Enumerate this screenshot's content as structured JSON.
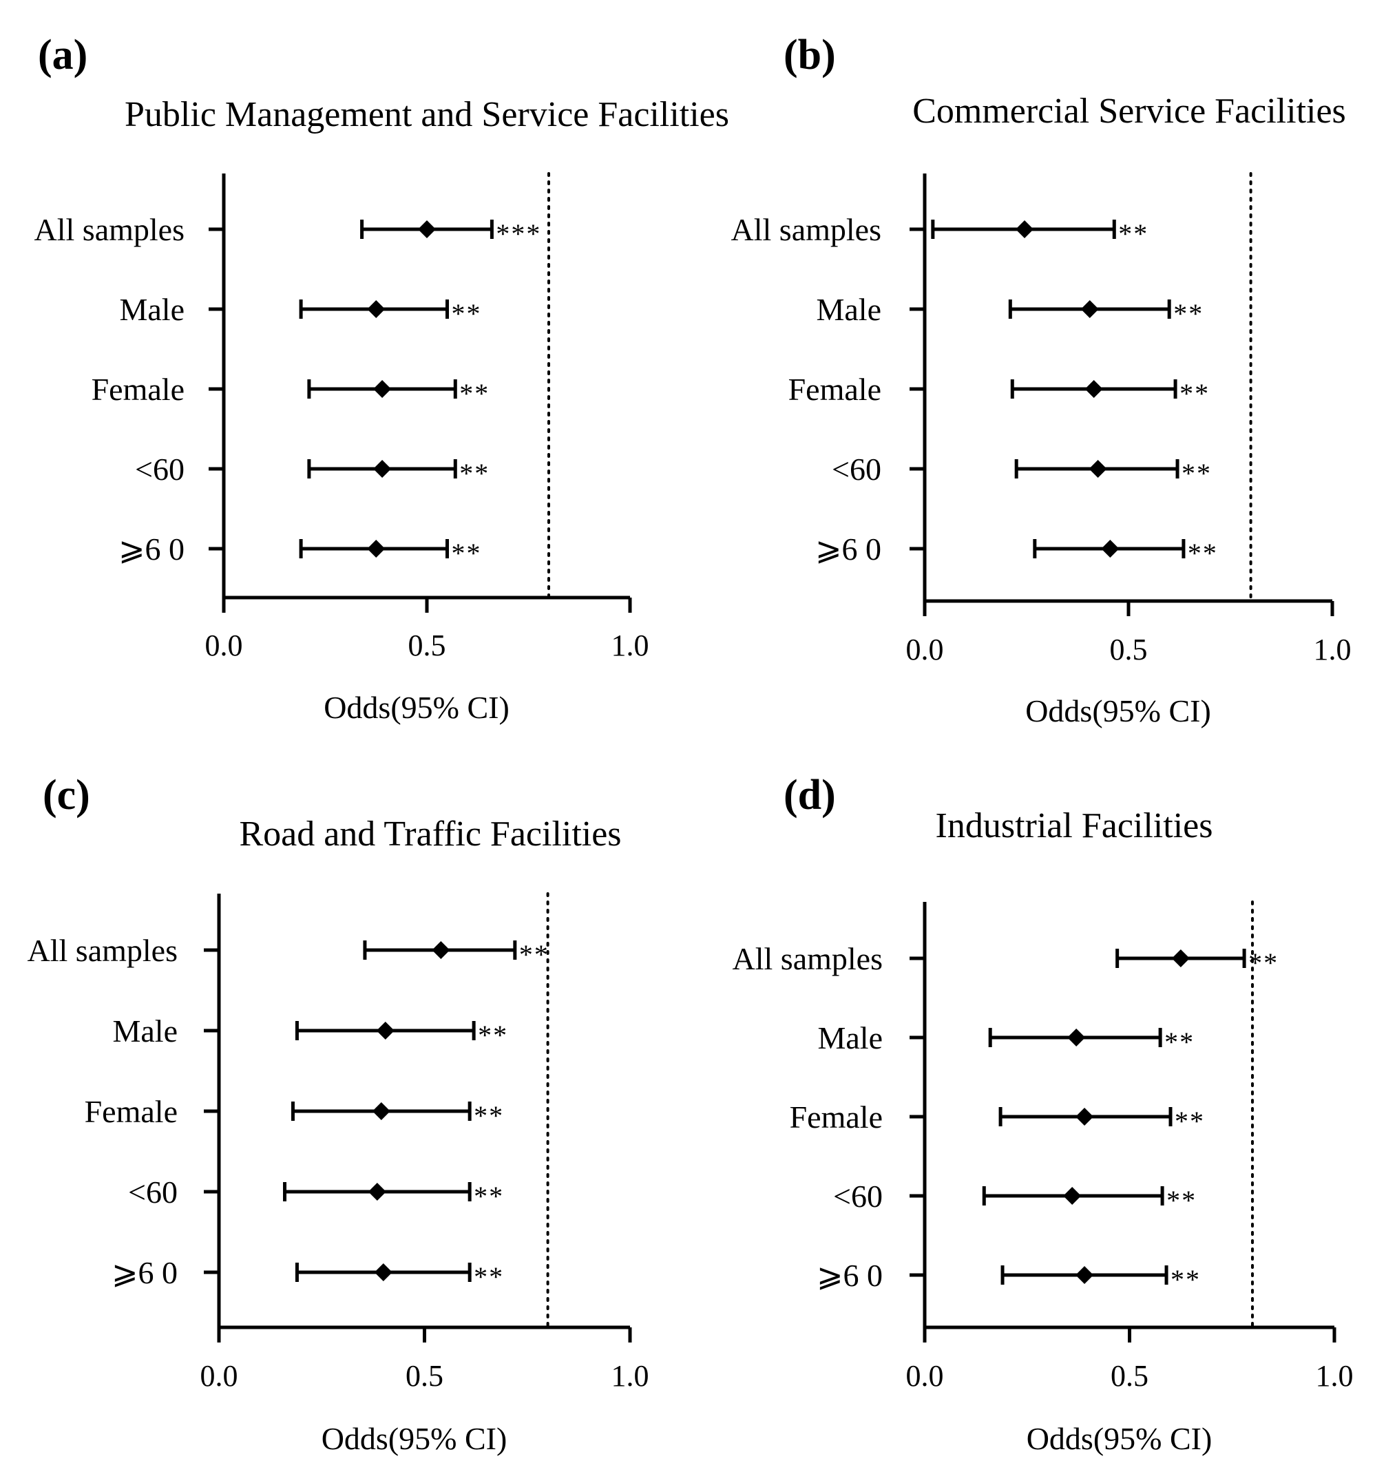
{
  "figure": {
    "chart_data": [
      {
        "type": "forest",
        "panel": "(a)",
        "title": "Public Management and Service Facilities",
        "xlabel": "Odds(95% CI)",
        "xlim": [
          0.0,
          1.0
        ],
        "xticks": [
          0.0,
          0.5,
          1.0
        ],
        "xtick_labels": [
          "0.0",
          "0.5",
          "1.0"
        ],
        "reference_line": 0.8,
        "categories": [
          "All samples",
          "Male",
          "Female",
          "<60",
          "⩾6 0"
        ],
        "estimates": [
          0.5,
          0.375,
          0.39,
          0.39,
          0.375
        ],
        "ci_lower": [
          0.34,
          0.19,
          0.21,
          0.21,
          0.19
        ],
        "ci_upper": [
          0.66,
          0.55,
          0.57,
          0.57,
          0.55
        ],
        "significance": [
          "***",
          "**",
          "**",
          "**",
          "**"
        ]
      },
      {
        "type": "forest",
        "panel": "(b)",
        "title": "Commercial Service Facilities",
        "xlabel": "Odds(95% CI)",
        "xlim": [
          0.0,
          1.0
        ],
        "xticks": [
          0.0,
          0.5,
          1.0
        ],
        "xtick_labels": [
          "0.0",
          "0.5",
          "1.0"
        ],
        "reference_line": 0.8,
        "categories": [
          "All samples",
          "Male",
          "Female",
          "<60",
          "⩾6 0"
        ],
        "estimates": [
          0.245,
          0.405,
          0.415,
          0.425,
          0.455
        ],
        "ci_lower": [
          0.02,
          0.21,
          0.215,
          0.225,
          0.27
        ],
        "ci_upper": [
          0.465,
          0.6,
          0.615,
          0.62,
          0.635
        ],
        "significance": [
          "**",
          "**",
          "**",
          "**",
          "**"
        ]
      },
      {
        "type": "forest",
        "panel": "(c)",
        "title": "Road and Traffic Facilities",
        "xlabel": "Odds(95% CI)",
        "xlim": [
          0.0,
          1.0
        ],
        "xticks": [
          0.0,
          0.5,
          1.0
        ],
        "xtick_labels": [
          "0.0",
          "0.5",
          "1.0"
        ],
        "reference_line": 0.8,
        "categories": [
          "All samples",
          "Male",
          "Female",
          "<60",
          "⩾6 0"
        ],
        "estimates": [
          0.54,
          0.405,
          0.395,
          0.385,
          0.4
        ],
        "ci_lower": [
          0.355,
          0.19,
          0.18,
          0.16,
          0.19
        ],
        "ci_upper": [
          0.72,
          0.62,
          0.61,
          0.61,
          0.61
        ],
        "significance": [
          "**",
          "**",
          "**",
          "**",
          "**"
        ]
      },
      {
        "type": "forest",
        "panel": "(d)",
        "title": "Industrial Facilities",
        "xlabel": "Odds(95% CI)",
        "xlim": [
          0.0,
          1.0
        ],
        "xticks": [
          0.0,
          0.5,
          1.0
        ],
        "xtick_labels": [
          "0.0",
          "0.5",
          "1.0"
        ],
        "reference_line": 0.8,
        "categories": [
          "All samples",
          "Male",
          "Female",
          "<60",
          "⩾6 0"
        ],
        "estimates": [
          0.625,
          0.37,
          0.39,
          0.36,
          0.39
        ],
        "ci_lower": [
          0.47,
          0.16,
          0.185,
          0.145,
          0.19
        ],
        "ci_upper": [
          0.78,
          0.575,
          0.6,
          0.58,
          0.59
        ],
        "significance": [
          "**",
          "**",
          "**",
          "**",
          "**"
        ]
      }
    ]
  },
  "colors": {
    "ink": "#000000",
    "background": "#ffffff"
  }
}
